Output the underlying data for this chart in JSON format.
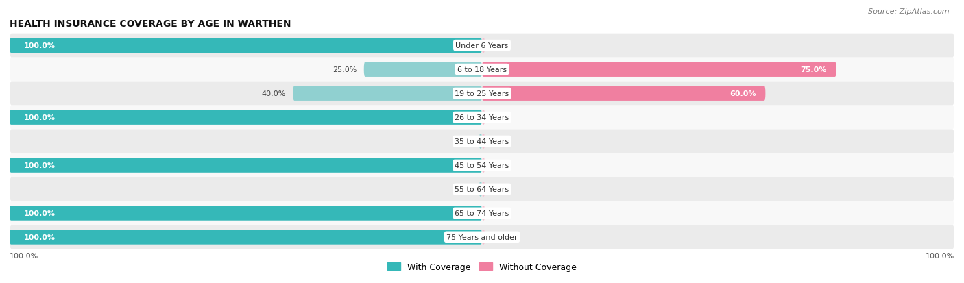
{
  "title": "HEALTH INSURANCE COVERAGE BY AGE IN WARTHEN",
  "source": "Source: ZipAtlas.com",
  "categories": [
    "Under 6 Years",
    "6 to 18 Years",
    "19 to 25 Years",
    "26 to 34 Years",
    "35 to 44 Years",
    "45 to 54 Years",
    "55 to 64 Years",
    "65 to 74 Years",
    "75 Years and older"
  ],
  "with_coverage": [
    100.0,
    25.0,
    40.0,
    100.0,
    0.0,
    100.0,
    0.0,
    100.0,
    100.0
  ],
  "without_coverage": [
    0.0,
    75.0,
    60.0,
    0.0,
    0.0,
    0.0,
    0.0,
    0.0,
    0.0
  ],
  "color_with": "#35b8b8",
  "color_without": "#f07fa0",
  "color_with_light": "#90d0d0",
  "color_without_light": "#f5bfcf",
  "bg_row_even": "#ebebeb",
  "bg_row_odd": "#f8f8f8",
  "title_fontsize": 10,
  "label_fontsize": 8,
  "category_fontsize": 8,
  "legend_fontsize": 9,
  "source_fontsize": 8
}
